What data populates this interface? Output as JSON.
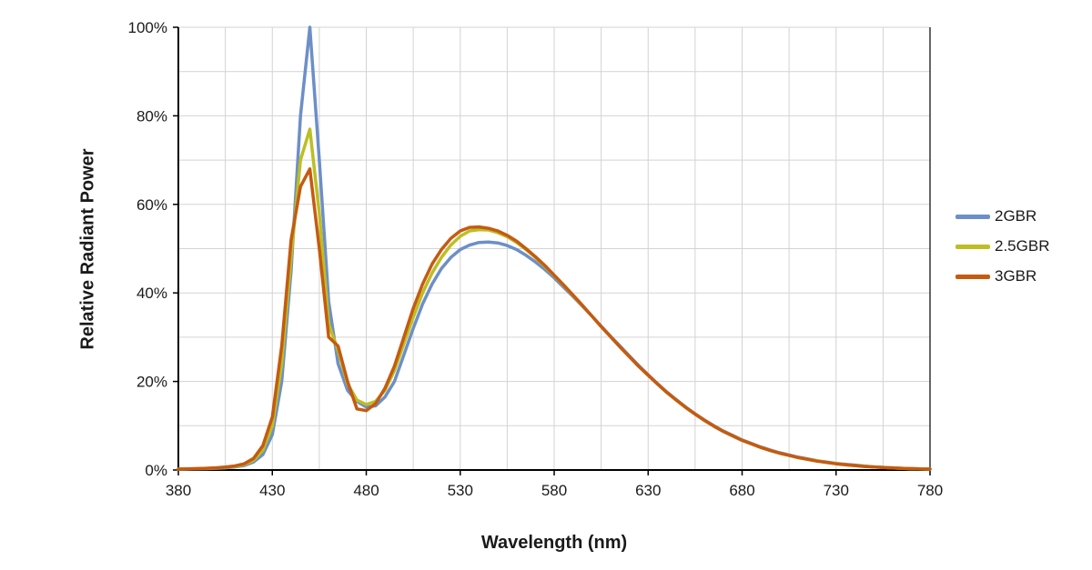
{
  "chart_data": {
    "type": "line",
    "title": "",
    "xlabel": "Wavelength (nm)",
    "ylabel": "Relative Radiant Power",
    "xlim": [
      380,
      780
    ],
    "ylim": [
      0,
      100
    ],
    "x_ticks": [
      380,
      430,
      480,
      530,
      580,
      630,
      680,
      730,
      780
    ],
    "x_tick_labels": [
      "380",
      "430",
      "480",
      "530",
      "580",
      "630",
      "680",
      "730",
      "780"
    ],
    "y_ticks": [
      0,
      20,
      40,
      60,
      80,
      100
    ],
    "y_tick_labels": [
      "0%",
      "20%",
      "40%",
      "60%",
      "80%",
      "100%"
    ],
    "x_minor_grid_step": 25,
    "y_minor_grid_step": 10,
    "grid": true,
    "legend_position": "right",
    "colors": {
      "gridline": "#D3D3D3",
      "axis": "#000000",
      "background": "#FFFFFF"
    },
    "x": [
      380,
      385,
      390,
      395,
      400,
      405,
      410,
      415,
      420,
      425,
      430,
      435,
      440,
      445,
      450,
      455,
      460,
      465,
      470,
      475,
      480,
      485,
      490,
      495,
      500,
      505,
      510,
      515,
      520,
      525,
      530,
      535,
      540,
      545,
      550,
      555,
      560,
      565,
      570,
      575,
      580,
      585,
      590,
      595,
      600,
      605,
      610,
      615,
      620,
      625,
      630,
      635,
      640,
      645,
      650,
      655,
      660,
      665,
      670,
      675,
      680,
      685,
      690,
      695,
      700,
      705,
      710,
      715,
      720,
      725,
      730,
      735,
      740,
      745,
      750,
      755,
      760,
      765,
      770,
      775,
      780
    ],
    "series": [
      {
        "name": "2GBR",
        "color": "#6D8FC7",
        "values": [
          0.2,
          0.2,
          0.3,
          0.3,
          0.4,
          0.5,
          0.7,
          1.0,
          1.8,
          3.5,
          8,
          20,
          45,
          80,
          100,
          70,
          38,
          24,
          18,
          15.5,
          14.2,
          14.5,
          16.5,
          20,
          26,
          32,
          37.5,
          42,
          45.5,
          48,
          49.8,
          50.8,
          51.4,
          51.5,
          51.3,
          50.7,
          49.8,
          48.5,
          47,
          45.3,
          43.4,
          41.3,
          39.2,
          37,
          34.8,
          32.5,
          30.2,
          28,
          25.8,
          23.6,
          21.5,
          19.5,
          17.6,
          15.9,
          14.2,
          12.7,
          11.3,
          10,
          8.8,
          7.8,
          6.8,
          6,
          5.2,
          4.5,
          3.9,
          3.4,
          2.9,
          2.5,
          2.1,
          1.8,
          1.5,
          1.3,
          1.1,
          0.9,
          0.7,
          0.6,
          0.5,
          0.4,
          0.3,
          0.25,
          0.2
        ]
      },
      {
        "name": "2.5GBR",
        "color": "#BDBE24",
        "values": [
          0.2,
          0.25,
          0.3,
          0.35,
          0.45,
          0.6,
          0.8,
          1.2,
          2.2,
          4.5,
          10,
          24,
          48,
          70,
          77,
          58,
          33,
          27,
          19.5,
          15.8,
          14.8,
          15.5,
          18,
          22.5,
          28.5,
          34.5,
          40,
          44.5,
          48,
          50.8,
          52.8,
          54,
          54.3,
          54.2,
          53.6,
          52.7,
          51.4,
          49.8,
          48,
          46,
          43.9,
          41.7,
          39.4,
          37.1,
          34.8,
          32.4,
          30.1,
          27.8,
          25.6,
          23.4,
          21.4,
          19.4,
          17.5,
          15.8,
          14.1,
          12.6,
          11.2,
          9.9,
          8.7,
          7.7,
          6.7,
          5.9,
          5.1,
          4.4,
          3.8,
          3.3,
          2.8,
          2.4,
          2.1,
          1.7,
          1.5,
          1.2,
          1.0,
          0.85,
          0.7,
          0.6,
          0.5,
          0.4,
          0.3,
          0.25,
          0.2
        ]
      },
      {
        "name": "3GBR",
        "color": "#C55A11",
        "values": [
          0.2,
          0.25,
          0.3,
          0.4,
          0.5,
          0.65,
          0.9,
          1.4,
          2.6,
          5.5,
          12,
          28,
          52,
          64,
          68,
          50,
          30,
          28,
          20,
          13.8,
          13.4,
          15,
          18.5,
          23.5,
          30,
          36.5,
          42,
          46.5,
          49.8,
          52.3,
          54,
          54.8,
          54.9,
          54.6,
          54,
          53,
          51.7,
          50,
          48.2,
          46.2,
          44,
          41.8,
          39.5,
          37.2,
          34.8,
          32.4,
          30.1,
          27.8,
          25.6,
          23.4,
          21.4,
          19.4,
          17.5,
          15.8,
          14.1,
          12.6,
          11.2,
          9.9,
          8.7,
          7.7,
          6.7,
          5.9,
          5.1,
          4.4,
          3.8,
          3.3,
          2.8,
          2.4,
          2.0,
          1.7,
          1.4,
          1.2,
          1.0,
          0.8,
          0.7,
          0.55,
          0.45,
          0.35,
          0.3,
          0.22,
          0.2
        ]
      }
    ]
  }
}
